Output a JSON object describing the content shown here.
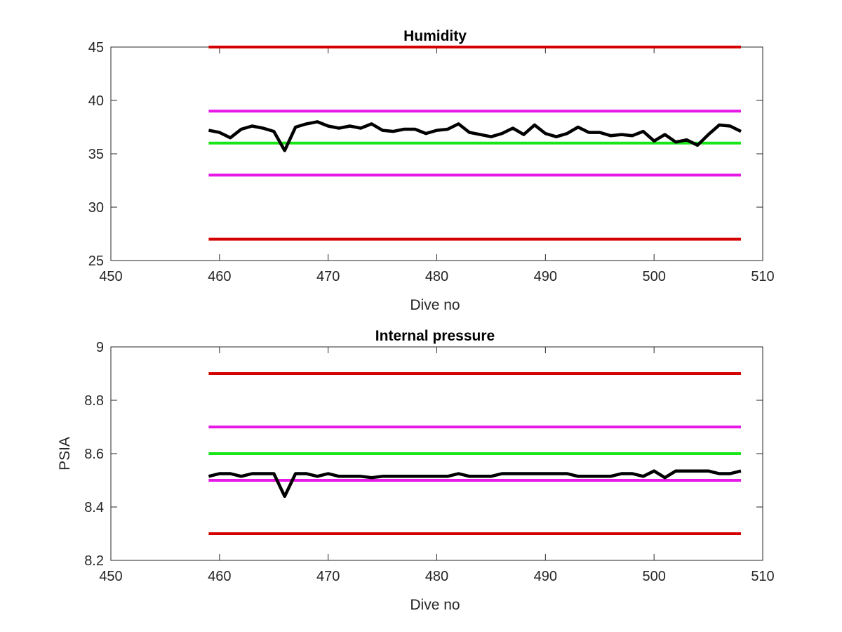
{
  "chart_data": [
    {
      "type": "line",
      "title": "Humidity",
      "xlabel": "Dive no",
      "ylabel": "",
      "xlim": [
        450,
        510
      ],
      "ylim": [
        25,
        45
      ],
      "xticks": [
        450,
        460,
        470,
        480,
        490,
        500,
        510
      ],
      "yticks": [
        25,
        30,
        35,
        40,
        45
      ],
      "grid": false,
      "series": [
        {
          "color": "#d40000",
          "x": [
            459,
            508
          ],
          "y": [
            45,
            45
          ]
        },
        {
          "color": "#e619e6",
          "x": [
            459,
            508
          ],
          "y": [
            39,
            39
          ]
        },
        {
          "color": "#19e619",
          "x": [
            459,
            508
          ],
          "y": [
            36,
            36
          ]
        },
        {
          "color": "#e619e6",
          "x": [
            459,
            508
          ],
          "y": [
            33,
            33
          ]
        },
        {
          "color": "#d40000",
          "x": [
            459,
            508
          ],
          "y": [
            27,
            27
          ]
        },
        {
          "color": "#000000",
          "x": [
            459,
            460,
            461,
            462,
            463,
            464,
            465,
            466,
            467,
            468,
            469,
            470,
            471,
            472,
            473,
            474,
            475,
            476,
            477,
            478,
            479,
            480,
            481,
            482,
            483,
            484,
            485,
            486,
            487,
            488,
            489,
            490,
            491,
            492,
            493,
            494,
            495,
            496,
            497,
            498,
            499,
            500,
            501,
            502,
            503,
            504,
            505,
            506,
            507,
            508
          ],
          "y": [
            37.2,
            37.0,
            36.5,
            37.3,
            37.6,
            37.4,
            37.1,
            35.3,
            37.5,
            37.8,
            38.0,
            37.6,
            37.4,
            37.6,
            37.4,
            37.8,
            37.2,
            37.1,
            37.3,
            37.3,
            36.9,
            37.2,
            37.3,
            37.8,
            37.0,
            36.8,
            36.6,
            36.9,
            37.4,
            36.8,
            37.7,
            36.9,
            36.6,
            36.9,
            37.5,
            37.0,
            37.0,
            36.7,
            36.8,
            36.7,
            37.1,
            36.2,
            36.8,
            36.1,
            36.3,
            35.8,
            36.8,
            37.7,
            37.6,
            37.1
          ]
        }
      ]
    },
    {
      "type": "line",
      "title": "Internal pressure",
      "xlabel": "Dive no",
      "ylabel": "PSIA",
      "xlim": [
        450,
        510
      ],
      "ylim": [
        8.2,
        9
      ],
      "xticks": [
        450,
        460,
        470,
        480,
        490,
        500,
        510
      ],
      "yticks": [
        8.2,
        8.4,
        8.6,
        8.8,
        9
      ],
      "grid": false,
      "series": [
        {
          "color": "#d40000",
          "x": [
            459,
            508
          ],
          "y": [
            8.9,
            8.9
          ]
        },
        {
          "color": "#e619e6",
          "x": [
            459,
            508
          ],
          "y": [
            8.7,
            8.7
          ]
        },
        {
          "color": "#19e619",
          "x": [
            459,
            508
          ],
          "y": [
            8.6,
            8.6
          ]
        },
        {
          "color": "#e619e6",
          "x": [
            459,
            508
          ],
          "y": [
            8.5,
            8.5
          ]
        },
        {
          "color": "#d40000",
          "x": [
            459,
            508
          ],
          "y": [
            8.3,
            8.3
          ]
        },
        {
          "color": "#000000",
          "x": [
            459,
            460,
            461,
            462,
            463,
            464,
            465,
            466,
            467,
            468,
            469,
            470,
            471,
            472,
            473,
            474,
            475,
            476,
            477,
            478,
            479,
            480,
            481,
            482,
            483,
            484,
            485,
            486,
            487,
            488,
            489,
            490,
            491,
            492,
            493,
            494,
            495,
            496,
            497,
            498,
            499,
            500,
            501,
            502,
            503,
            504,
            505,
            506,
            507,
            508
          ],
          "y": [
            8.515,
            8.525,
            8.525,
            8.515,
            8.525,
            8.525,
            8.525,
            8.44,
            8.525,
            8.525,
            8.515,
            8.525,
            8.515,
            8.515,
            8.515,
            8.51,
            8.515,
            8.515,
            8.515,
            8.515,
            8.515,
            8.515,
            8.515,
            8.525,
            8.515,
            8.515,
            8.515,
            8.525,
            8.525,
            8.525,
            8.525,
            8.525,
            8.525,
            8.525,
            8.515,
            8.515,
            8.515,
            8.515,
            8.525,
            8.525,
            8.515,
            8.535,
            8.51,
            8.535,
            8.535,
            8.535,
            8.535,
            8.525,
            8.525,
            8.535
          ]
        }
      ]
    }
  ]
}
